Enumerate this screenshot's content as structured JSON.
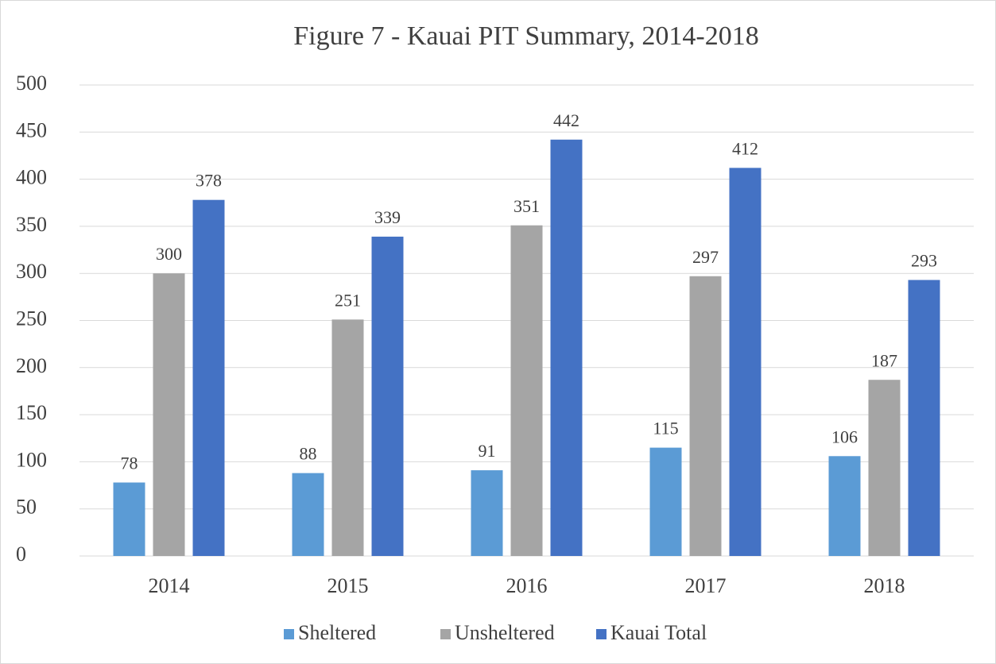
{
  "chart_data": {
    "type": "bar",
    "title": "Figure 7 - Kauai PIT Summary, 2014-2018",
    "categories": [
      "2014",
      "2015",
      "2016",
      "2017",
      "2018"
    ],
    "series": [
      {
        "name": "Sheltered",
        "color": "#5b9bd5",
        "values": [
          78,
          88,
          91,
          115,
          106
        ]
      },
      {
        "name": "Unsheltered",
        "color": "#a5a5a5",
        "values": [
          300,
          251,
          351,
          297,
          187
        ]
      },
      {
        "name": "Kauai Total",
        "color": "#4472c4",
        "values": [
          378,
          339,
          442,
          412,
          293
        ]
      }
    ],
    "ylim": [
      0,
      500
    ],
    "yticks": [
      0,
      50,
      100,
      150,
      200,
      250,
      300,
      350,
      400,
      450,
      500
    ],
    "grid": true,
    "legend": "bottom"
  }
}
